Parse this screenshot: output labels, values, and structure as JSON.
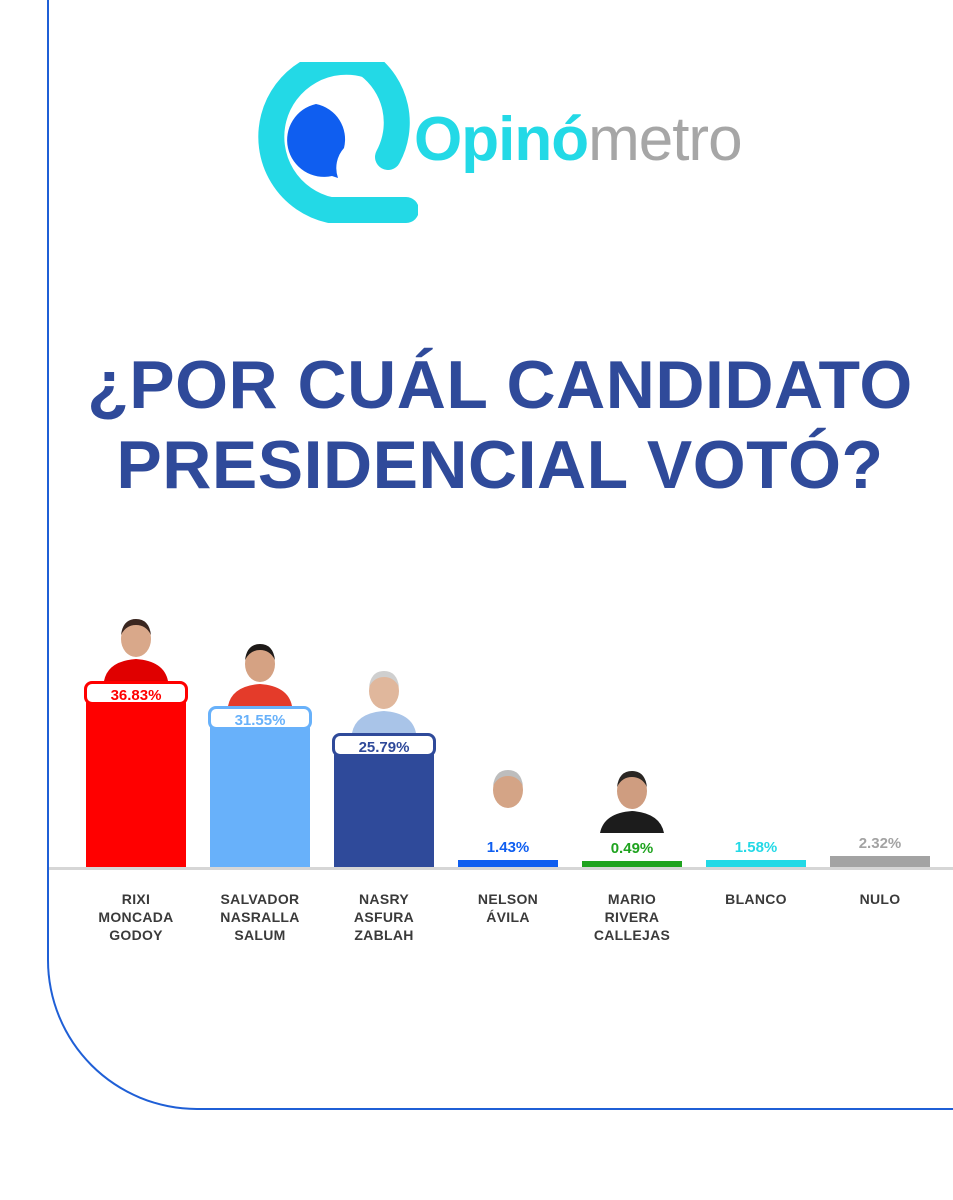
{
  "brand": {
    "word_bold": "Opinó",
    "word_light": "metro",
    "color_primary": "#23d9e6",
    "color_bubble": "#0f5ef0",
    "color_light": "#a6a6a6"
  },
  "headline": {
    "line1": "¿POR CUÁL CANDIDATO",
    "line2": "PRESIDENCIAL VOTÓ?"
  },
  "chart_data": {
    "type": "bar",
    "categories": [
      "RIXI\nMONCADA\nGODOY",
      "SALVADOR\nNASRALLA\nSALUM",
      "NASRY\nASFURA\nZABLAH",
      "NELSON\nÁVILA",
      "MARIO\nRIVERA\nCALLEJAS",
      "BLANCO",
      "NULO"
    ],
    "values": [
      36.83,
      31.55,
      25.79,
      1.43,
      0.49,
      1.58,
      2.32
    ],
    "value_labels": [
      "36.83%",
      "31.55%",
      "25.79%",
      "1.43%",
      "0.49%",
      "1.58%",
      "2.32%"
    ],
    "colors": [
      "#ff0000",
      "#68b1fa",
      "#2f4a9a",
      "#0f5ef0",
      "#1fa31f",
      "#23d9e6",
      "#a3a3a3"
    ],
    "title": "¿POR CUÁL CANDIDATO PRESIDENCIAL VOTÓ?",
    "xlabel": "",
    "ylabel": "",
    "grid": false,
    "legend": "none"
  }
}
